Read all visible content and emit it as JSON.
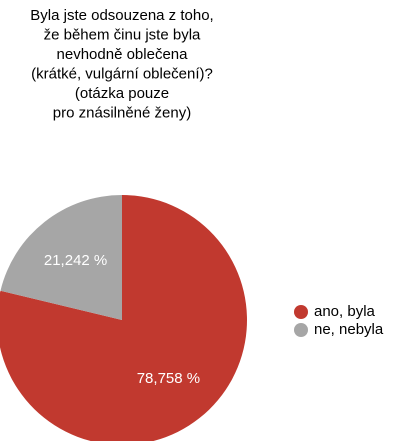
{
  "chart_data": {
    "type": "pie",
    "title": [
      "Byla jste odsouzena z toho,",
      "že během činu jste byla",
      "nevhodně oblečena",
      "(krátké, vulgární oblečení)?",
      "(otázka pouze",
      "pro znásilněné ženy)"
    ],
    "categories": [
      "ano, byla",
      "ne, nebyla"
    ],
    "values": [
      78.758,
      21.242
    ],
    "value_labels": [
      "78,758 %",
      "21,242 %"
    ],
    "colors": [
      "#c1392f",
      "#a6a6a6"
    ],
    "legend": "right"
  }
}
